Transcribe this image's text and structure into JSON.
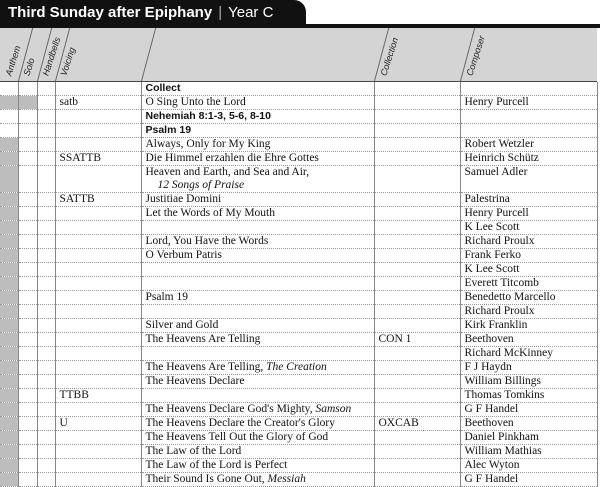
{
  "header": {
    "title": "Third Sunday after Epiphany",
    "separator": "|",
    "year": "Year C"
  },
  "columns": {
    "anthem": "Anthem",
    "solo": "Solo",
    "handbells": "Handbells",
    "voicing": "Voicing",
    "collection": "Collection",
    "composer": "Composer"
  },
  "colors": {
    "shade": "#bdbdbd",
    "header_bg": "#d4d4d4",
    "tab": "#111111"
  },
  "rows": [
    {
      "heading": "Collect"
    },
    {
      "anthem_shaded": true,
      "solo_shaded": true,
      "voicing": "satb",
      "title": "O Sing Unto the Lord",
      "composer": "Henry Purcell"
    },
    {
      "heading": "Nehemiah 8:1-3, 5-6, 8-10"
    },
    {
      "heading": "Psalm 19"
    },
    {
      "anthem_shaded": true,
      "title": "Always, Only for My King",
      "composer": "Robert Wetzler"
    },
    {
      "anthem_shaded": true,
      "voicing": "SSATTB",
      "title": "Die Himmel erzahlen die Ehre Gottes",
      "composer": "Heinrich Schütz"
    },
    {
      "anthem_shaded": true,
      "title": "Heaven and Earth, and Sea and Air,",
      "subtitle": "12 Songs of Praise",
      "composer": "Samuel Adler"
    },
    {
      "anthem_shaded": true,
      "voicing": "SATTB",
      "title": "Justitiae Domini",
      "composer": "Palestrina"
    },
    {
      "anthem_shaded": true,
      "title": "Let the Words of My Mouth",
      "composer": "Henry Purcell"
    },
    {
      "anthem_shaded": true,
      "composer": "K Lee Scott"
    },
    {
      "anthem_shaded": true,
      "title": "Lord, You Have the Words",
      "composer": "Richard Proulx"
    },
    {
      "anthem_shaded": true,
      "title": "O Verbum Patris",
      "composer": "Frank Ferko"
    },
    {
      "anthem_shaded": true,
      "composer": "K Lee Scott"
    },
    {
      "anthem_shaded": true,
      "composer": "Everett Titcomb"
    },
    {
      "anthem_shaded": true,
      "title": "Psalm 19",
      "composer": "Benedetto Marcello"
    },
    {
      "anthem_shaded": true,
      "composer": "Richard Proulx"
    },
    {
      "anthem_shaded": true,
      "title": "Silver and Gold",
      "composer": "Kirk Franklin"
    },
    {
      "anthem_shaded": true,
      "title": "The Heavens Are Telling",
      "collection": "CON 1",
      "composer": "Beethoven"
    },
    {
      "anthem_shaded": true,
      "composer": "Richard McKinney"
    },
    {
      "anthem_shaded": true,
      "title": "The Heavens Are Telling, ",
      "title_italic": "The Creation",
      "composer": "F J Haydn"
    },
    {
      "anthem_shaded": true,
      "title": "The Heavens Declare",
      "composer": "William Billings"
    },
    {
      "anthem_shaded": true,
      "voicing": "TTBB",
      "composer": "Thomas Tomkins"
    },
    {
      "anthem_shaded": true,
      "title": "The Heavens Declare God's Mighty, ",
      "title_italic": "Samson",
      "composer": "G F Handel"
    },
    {
      "anthem_shaded": true,
      "voicing": "U",
      "title": "The Heavens Declare the Creator's Glory",
      "collection": "OXCAB",
      "composer": "Beethoven"
    },
    {
      "anthem_shaded": true,
      "title": "The Heavens Tell Out the Glory of God",
      "composer": "Daniel Pinkham"
    },
    {
      "anthem_shaded": true,
      "title": "The Law of the Lord",
      "composer": "William Mathias"
    },
    {
      "anthem_shaded": true,
      "title": "The Law of the Lord is Perfect",
      "composer": "Alec Wyton"
    },
    {
      "anthem_shaded": true,
      "title": "Their Sound Is Gone Out, ",
      "title_italic": "Messiah",
      "composer": "G F Handel"
    }
  ]
}
